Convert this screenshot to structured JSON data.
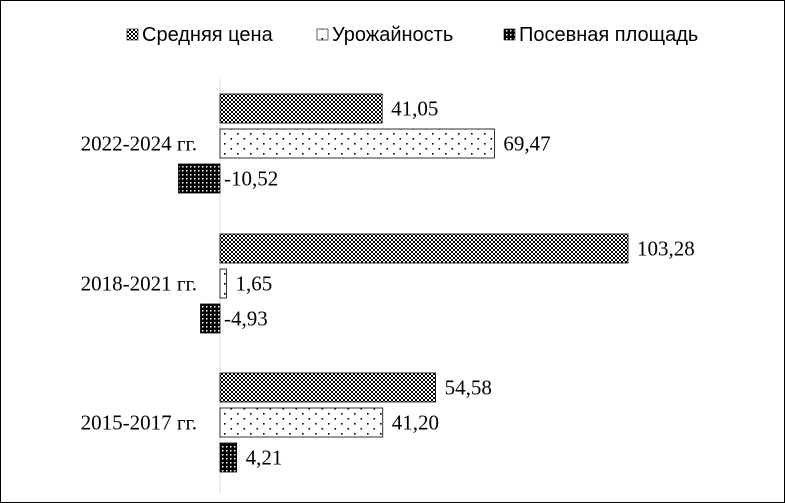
{
  "chart_data": {
    "type": "bar",
    "orientation": "horizontal",
    "categories": [
      "2022-2024 гг.",
      "2018-2021 гг.",
      "2015-2017 гг."
    ],
    "series": [
      {
        "name": "Средняя цена",
        "values": [
          41.05,
          103.28,
          54.58
        ],
        "labels": [
          "41,05",
          "103,28",
          "54,58"
        ],
        "pattern": "checker-dense"
      },
      {
        "name": "Урожайность",
        "values": [
          69.47,
          1.65,
          41.2
        ],
        "labels": [
          "69,47",
          "1,65",
          "41,20"
        ],
        "pattern": "sparse-dots"
      },
      {
        "name": "Посевная площадь",
        "values": [
          -10.52,
          -4.93,
          4.21
        ],
        "labels": [
          "-10,52",
          "-4,93",
          "4,21"
        ],
        "pattern": "checker-dark"
      }
    ],
    "xlim": [
      -11,
      104
    ],
    "grid": false,
    "legend_position": "top"
  }
}
